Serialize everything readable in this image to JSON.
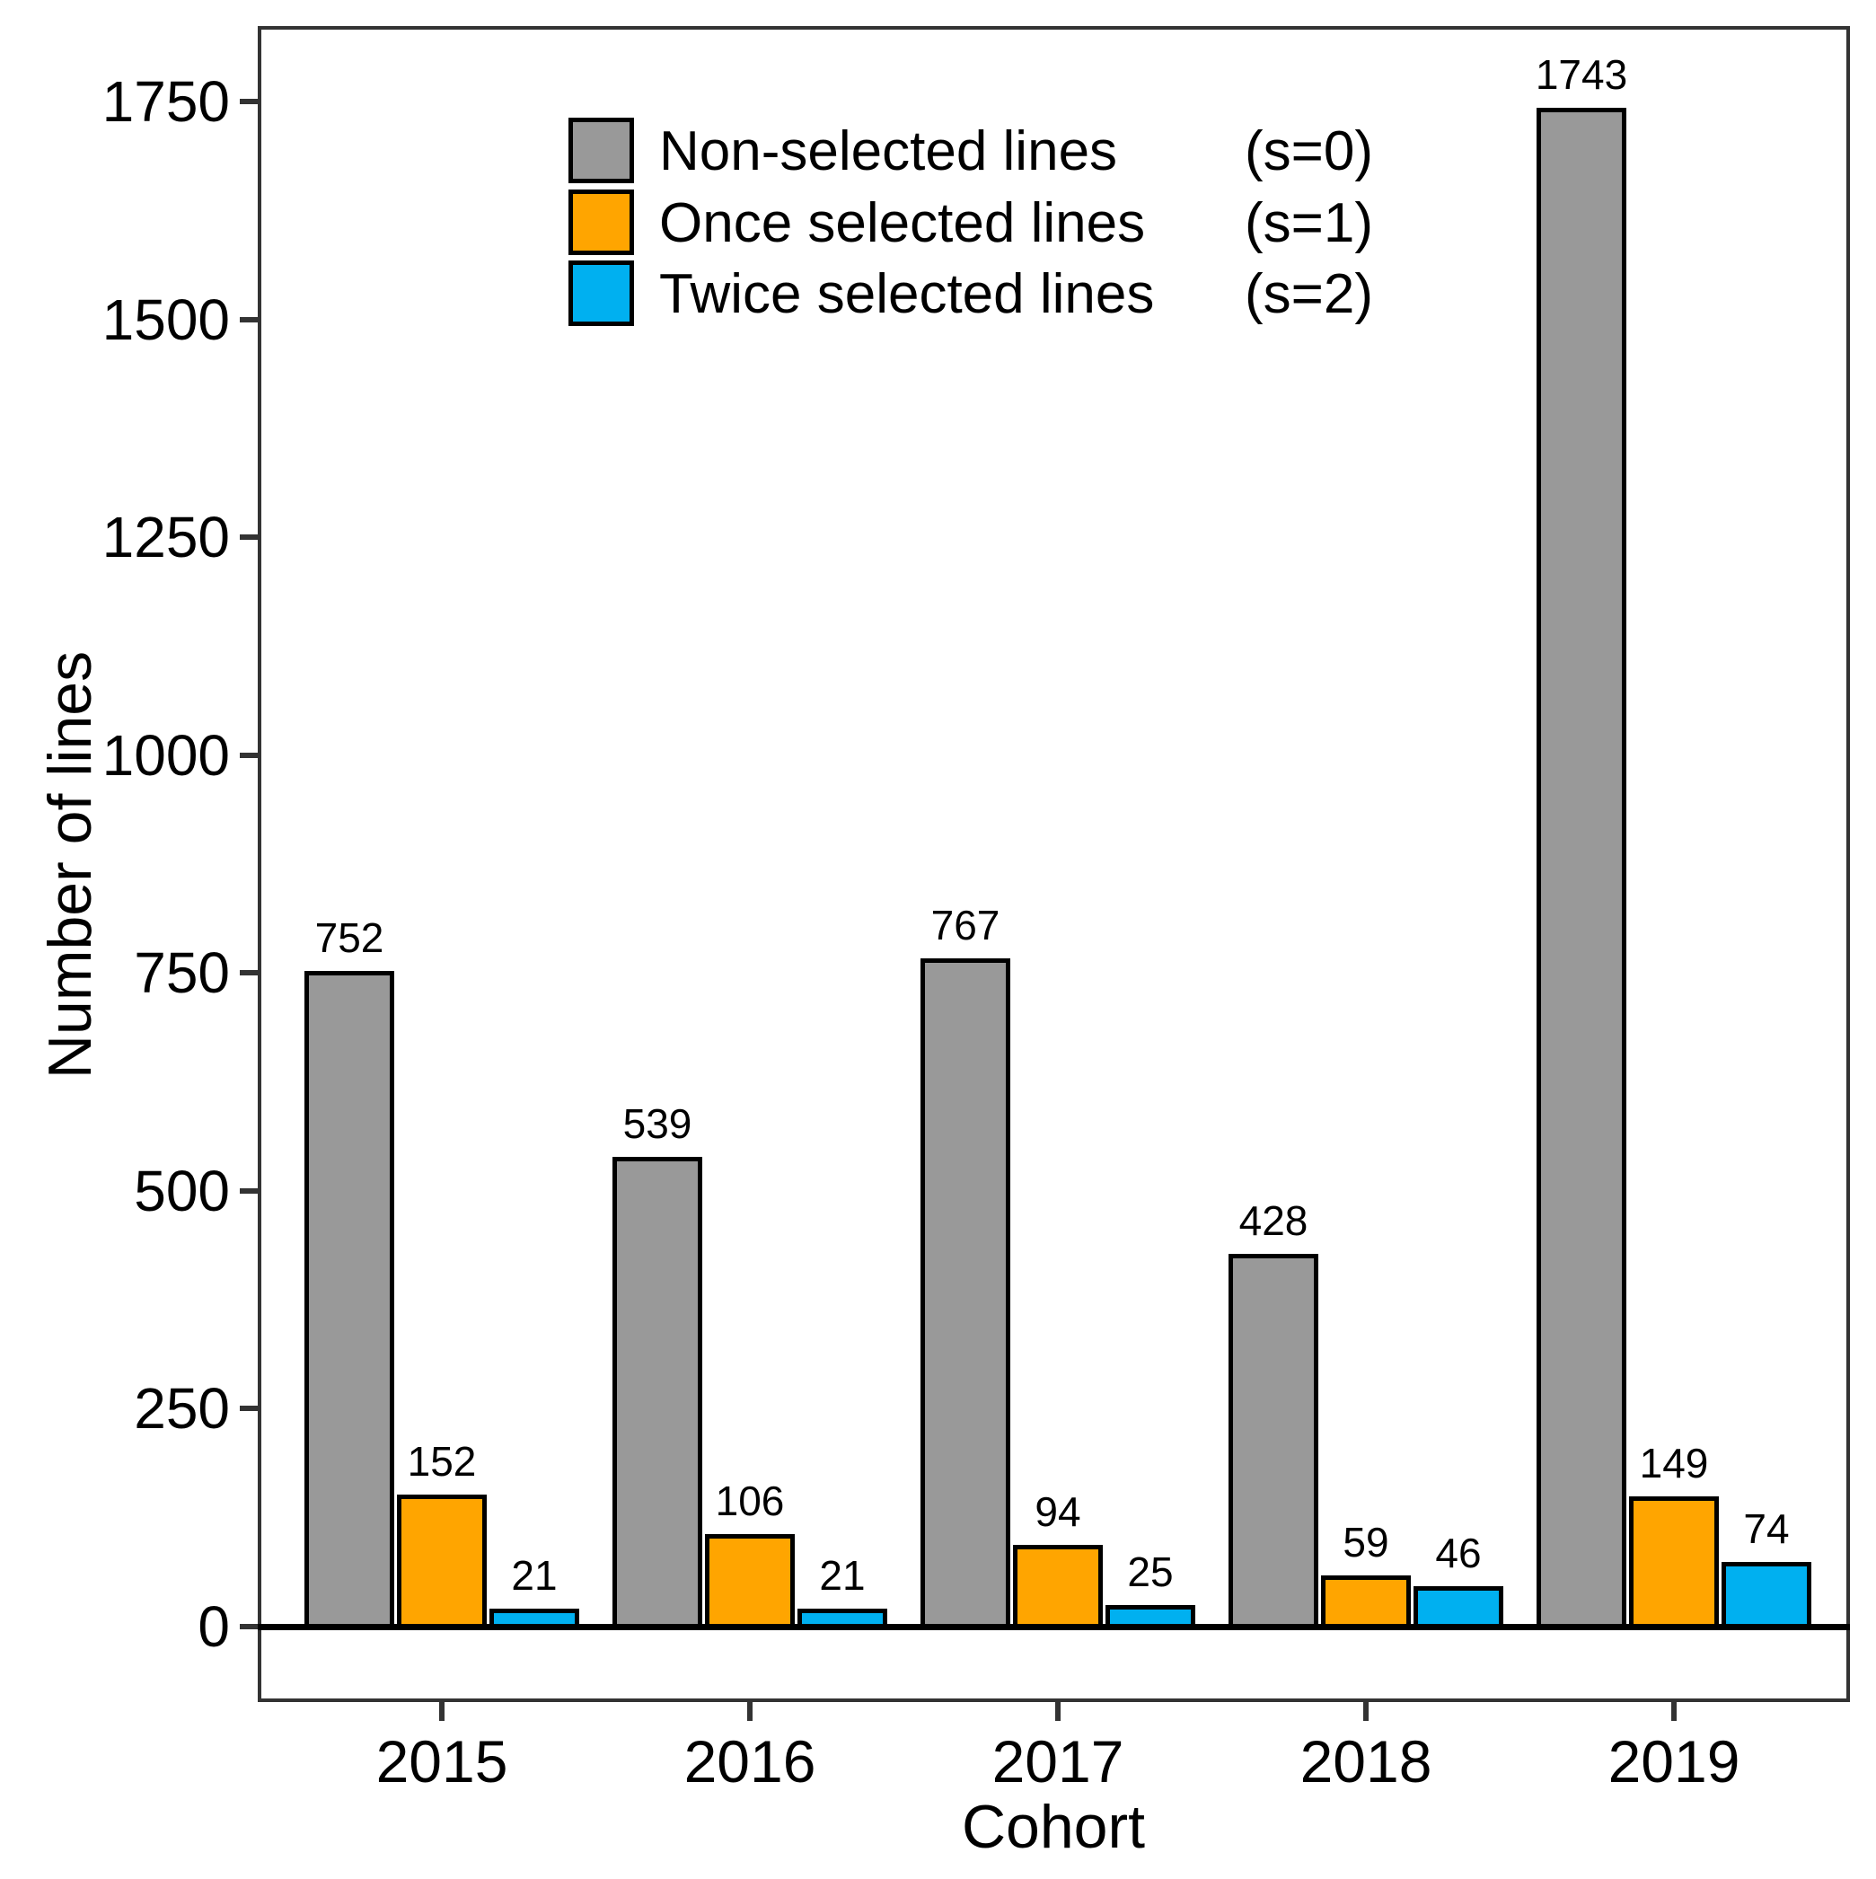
{
  "figure": {
    "xlabel": "Cohort",
    "ylabel": "Number of lines"
  },
  "chart_data": {
    "type": "bar",
    "title": "",
    "xlabel": "Cohort",
    "ylabel": "Number of lines",
    "categories": [
      "2015",
      "2016",
      "2017",
      "2018",
      "2019"
    ],
    "series": [
      {
        "name": "Non-selected lines",
        "suffix": "(s=0)",
        "color": "#999999",
        "values": [
          752,
          539,
          767,
          428,
          1743
        ]
      },
      {
        "name": "Once selected lines",
        "suffix": "(s=1)",
        "color": "#FFA500",
        "values": [
          152,
          106,
          94,
          59,
          149
        ]
      },
      {
        "name": "Twice selected lines",
        "suffix": "(s=2)",
        "color": "#00B0F0",
        "values": [
          21,
          21,
          25,
          46,
          74
        ]
      }
    ],
    "y_ticks": [
      0,
      250,
      500,
      750,
      1000,
      1250,
      1500,
      1750
    ],
    "ylim": [
      0,
      1750
    ],
    "bar_value_labels": true,
    "bar_border_color": "#000000",
    "legend_position": "top-left-inside",
    "grid": false
  }
}
